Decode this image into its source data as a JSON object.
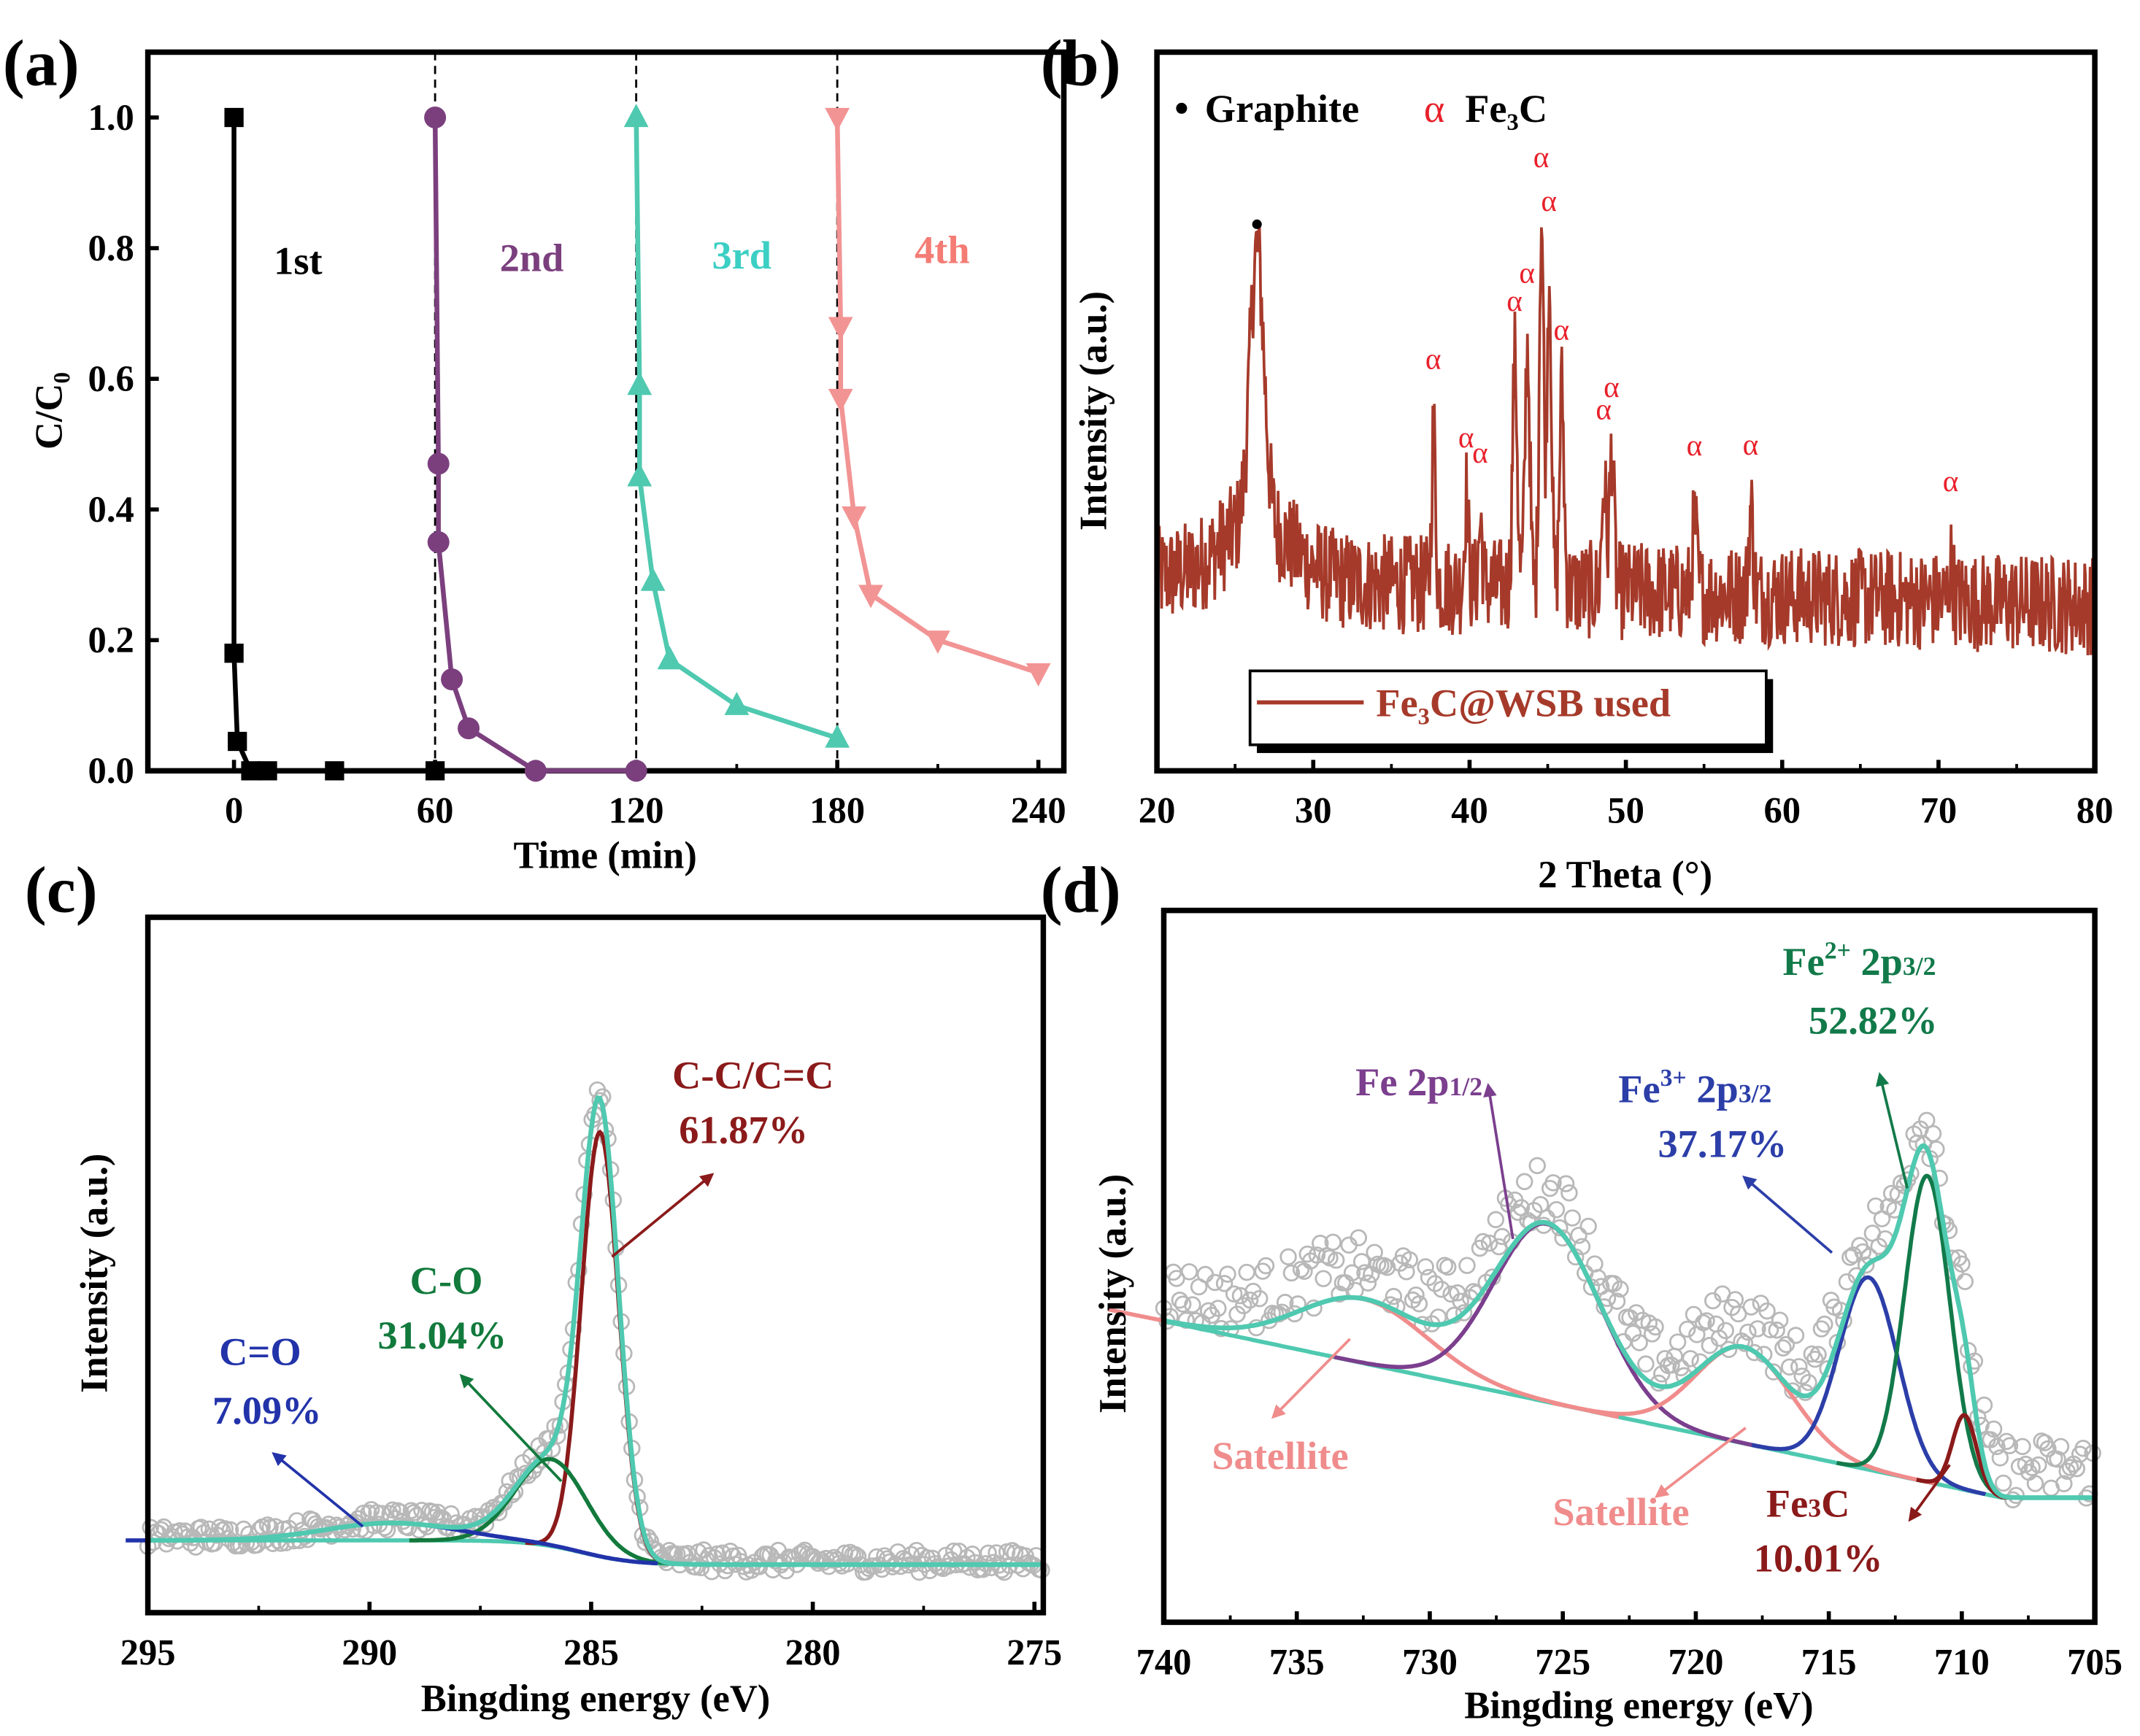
{
  "chart_data": [
    {
      "id": "a",
      "type": "line",
      "panel_label": "(a)",
      "xlabel": "Time (min)",
      "ylabel": "C/C₀",
      "xlim": [
        -25.7,
        247.6
      ],
      "ylim": [
        0,
        1.1
      ],
      "xticks": [
        0,
        60,
        120,
        180,
        240
      ],
      "yticks": [
        0.0,
        0.2,
        0.4,
        0.6,
        0.8,
        1.0
      ],
      "ytick_labels": [
        "0.0",
        "0.2",
        "0.4",
        "0.6",
        "0.8",
        "1.0"
      ],
      "cycle_dividers": [
        60,
        120,
        180
      ],
      "series": [
        {
          "name": "1st",
          "color": "#000000",
          "marker": "square",
          "x": [
            0,
            0,
            1,
            5,
            10,
            30,
            60
          ],
          "y": [
            1.0,
            0.18,
            0.045,
            0,
            0,
            0,
            0
          ]
        },
        {
          "name": "2nd",
          "color": "#7b3f7e",
          "marker": "circle",
          "x": [
            60,
            61,
            61,
            65,
            70,
            90,
            120
          ],
          "y": [
            1.0,
            0.47,
            0.35,
            0.14,
            0.065,
            0,
            0
          ]
        },
        {
          "name": "3rd",
          "color": "#4fc9b0",
          "label_color": "#3ccfc4",
          "marker": "triangle-up",
          "x": [
            120,
            121,
            121,
            125,
            130,
            150,
            180
          ],
          "y": [
            1.0,
            0.59,
            0.45,
            0.29,
            0.17,
            0.1,
            0.05
          ]
        },
        {
          "name": "4th",
          "color": "#f29494",
          "label_color": "#f47c74",
          "marker": "triangle-down",
          "x": [
            180,
            181,
            181,
            185,
            190,
            210,
            240
          ],
          "y": [
            1.0,
            0.68,
            0.57,
            0.39,
            0.27,
            0.2,
            0.15
          ]
        }
      ]
    },
    {
      "id": "b",
      "type": "line",
      "panel_label": "(b)",
      "xlabel": "2 Theta (°)",
      "ylabel": "Intensity (a.u.)",
      "xlim": [
        20,
        80
      ],
      "ylim": [
        0,
        100
      ],
      "xticks": [
        20,
        30,
        40,
        50,
        60,
        70,
        80
      ],
      "series_name": "Fe₃C@WSB used",
      "color": "#a63a2a",
      "baseline": [
        27,
        23
      ],
      "legend_phases": {
        "graphite": "Graphite",
        "fe3c_symbol": "α",
        "fe3c": "Fe₃C"
      },
      "graphite_peaks": [
        {
          "x": 26.4,
          "h": 38,
          "w": 0.45
        }
      ],
      "fe3c_peaks": [
        {
          "x": 37.7,
          "h": 22,
          "w": 0.12
        },
        {
          "x": 39.8,
          "h": 13,
          "w": 0.12
        },
        {
          "x": 40.7,
          "h": 9,
          "w": 0.12
        },
        {
          "x": 42.9,
          "h": 32,
          "w": 0.15
        },
        {
          "x": 43.7,
          "h": 34,
          "w": 0.15
        },
        {
          "x": 44.6,
          "h": 52,
          "w": 0.14
        },
        {
          "x": 45.1,
          "h": 44,
          "w": 0.14
        },
        {
          "x": 45.9,
          "h": 28,
          "w": 0.14
        },
        {
          "x": 48.6,
          "h": 15,
          "w": 0.14
        },
        {
          "x": 49.1,
          "h": 20,
          "w": 0.14
        },
        {
          "x": 54.4,
          "h": 10,
          "w": 0.14
        },
        {
          "x": 58.0,
          "h": 12,
          "w": 0.14
        },
        {
          "x": 70.8,
          "h": 5,
          "w": 0.14
        }
      ],
      "noise": 7
    },
    {
      "id": "c",
      "type": "line",
      "panel_label": "(c)",
      "xlabel": "Bingding energy (eV)",
      "ylabel": "Intensity (a.u.)",
      "xlim": [
        295,
        274.8
      ],
      "ylim": [
        0,
        100
      ],
      "xticks": [
        295,
        290,
        285,
        280,
        275
      ],
      "background": {
        "high": 10.4,
        "low": 6.9,
        "center": 285.2,
        "width": 0.6
      },
      "envelope_color": "#4fc9b0",
      "raw_color": "#b8b8b8",
      "components": [
        {
          "name": "C-C/C=C",
          "percent": "61.87%",
          "center": 284.8,
          "height": 61,
          "sigma": 0.42,
          "color": "#8b1a1a"
        },
        {
          "name": "C-O",
          "percent": "31.04%",
          "center": 285.9,
          "height": 12.5,
          "sigma": 0.8,
          "color": "#127a3c"
        },
        {
          "name": "C=O",
          "percent": "7.09%",
          "center": 289.5,
          "height": 2.5,
          "sigma": 1.5,
          "color": "#2233aa"
        }
      ]
    },
    {
      "id": "d",
      "type": "line",
      "panel_label": "(d)",
      "xlabel": "Bingding energy (eV)",
      "ylabel": "Intensity (a.u.)",
      "xlim": [
        740,
        705
      ],
      "ylim": [
        0,
        100
      ],
      "xticks": [
        740,
        735,
        730,
        725,
        720,
        715,
        710,
        705
      ],
      "background": {
        "start": 42.3,
        "end": 17.5,
        "flat_below": 708.5
      },
      "envelope_color": "#4fc9b0",
      "raw_color": "#b8b8b8",
      "components": [
        {
          "name": "Satellite",
          "center": 732.5,
          "height": 9,
          "sigma": 2.4,
          "color": "#f08c8c"
        },
        {
          "name": "Fe 2p1/2",
          "center": 725.6,
          "height": 25,
          "sigma": 2.0,
          "color": "#7b3f8e"
        },
        {
          "name": "Satellite",
          "center": 718.2,
          "height": 13.5,
          "sigma": 1.8,
          "color": "#f08c8c"
        },
        {
          "name": "Fe3+ 2p3/2",
          "percent": "37.17%",
          "center": 713.5,
          "height": 27,
          "sigma": 1.1,
          "color": "#2c3ea8"
        },
        {
          "name": "Fe2+ 2p3/2",
          "percent": "52.82%",
          "center": 711.3,
          "height": 43,
          "sigma": 0.85,
          "color": "#127a4a"
        },
        {
          "name": "Fe3C",
          "percent": "10.01%",
          "center": 709.9,
          "height": 10.5,
          "sigma": 0.45,
          "color": "#8b1a1a"
        }
      ],
      "labels": {
        "fe_2p12_main": "Fe 2p",
        "fe_2p12_sub": "1/2",
        "fe3_main": "Fe",
        "fe3_sup": "3+",
        "fe3_mid": " 2p",
        "fe3_sub": "3/2",
        "fe2_main": "Fe",
        "fe2_sup": "2+",
        "fe2_mid": " 2p",
        "fe2_sub": "3/2",
        "fe3c_main": "Fe",
        "fe3c_sub": "3",
        "fe3c_end": "C",
        "satellite": "Satellite"
      }
    }
  ]
}
